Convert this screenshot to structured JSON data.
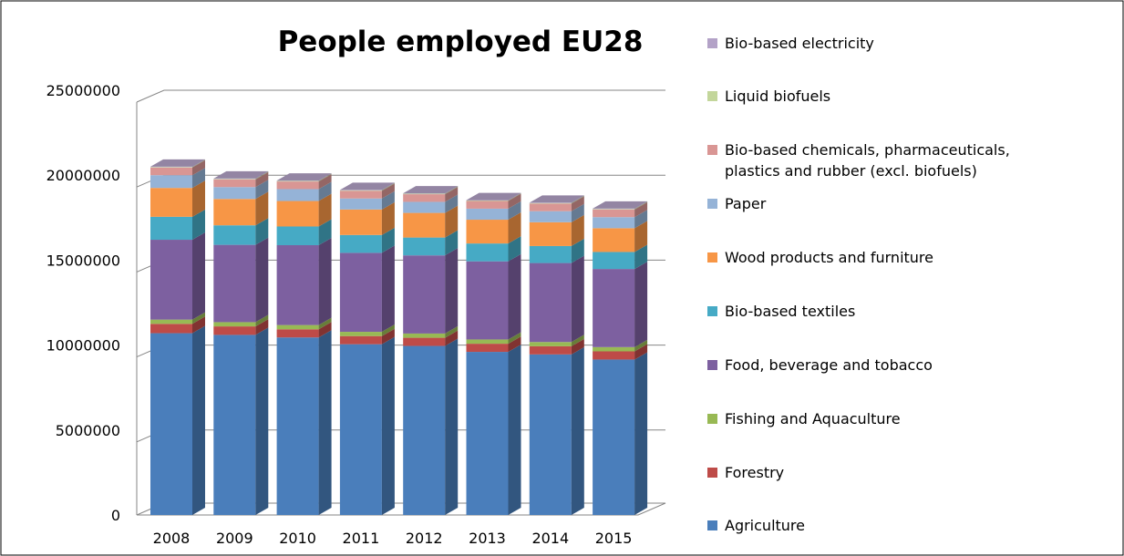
{
  "chart_data": {
    "type": "bar",
    "stacked": true,
    "style": "3d-column",
    "title": "People employed EU28",
    "xlabel": "",
    "ylabel": "",
    "ylim": [
      0,
      25000000
    ],
    "yticks": [
      "0",
      "5000000",
      "10000000",
      "15000000",
      "20000000",
      "25000000"
    ],
    "ytick_values": [
      0,
      5000000,
      10000000,
      15000000,
      20000000,
      25000000
    ],
    "grid": true,
    "legend_position": "right",
    "categories": [
      "2008",
      "2009",
      "2010",
      "2011",
      "2012",
      "2013",
      "2014",
      "2015"
    ],
    "series": [
      {
        "name": "Agriculture",
        "color": "#4A7EBB",
        "values": [
          10700000,
          10600000,
          10450000,
          10050000,
          9950000,
          9600000,
          9450000,
          9150000
        ]
      },
      {
        "name": "Forestry",
        "color": "#BE4B48",
        "values": [
          550000,
          500000,
          480000,
          480000,
          480000,
          480000,
          480000,
          480000
        ]
      },
      {
        "name": "Fishing and Aquaculture",
        "color": "#98B954",
        "values": [
          250000,
          250000,
          250000,
          250000,
          250000,
          250000,
          250000,
          250000
        ]
      },
      {
        "name": "Food, beverage and tobacco",
        "color": "#7D60A0",
        "values": [
          4700000,
          4550000,
          4700000,
          4650000,
          4600000,
          4600000,
          4650000,
          4600000
        ]
      },
      {
        "name": "Bio-based textiles",
        "color": "#46AAC5",
        "values": [
          1350000,
          1150000,
          1100000,
          1050000,
          1050000,
          1050000,
          1000000,
          1000000
        ]
      },
      {
        "name": "Wood products and furniture",
        "color": "#F79646",
        "values": [
          1700000,
          1550000,
          1500000,
          1500000,
          1450000,
          1400000,
          1400000,
          1400000
        ]
      },
      {
        "name": "Paper",
        "color": "#95B3D7",
        "values": [
          750000,
          700000,
          700000,
          650000,
          650000,
          650000,
          650000,
          650000
        ]
      },
      {
        "name": "Bio-based chemicals, pharmaceuticals, plastics and rubber (excl. biofuels)",
        "color": "#D99694",
        "values": [
          450000,
          450000,
          450000,
          450000,
          450000,
          450000,
          450000,
          450000
        ]
      },
      {
        "name": "Liquid biofuels",
        "color": "#C3D69B",
        "values": [
          30000,
          30000,
          30000,
          30000,
          30000,
          30000,
          30000,
          30000
        ]
      },
      {
        "name": "Bio-based electricity",
        "color": "#B3A2C7",
        "values": [
          20000,
          20000,
          20000,
          20000,
          20000,
          20000,
          20000,
          20000
        ]
      }
    ],
    "legend": [
      "Bio-based electricity",
      "Liquid biofuels",
      "Bio-based chemicals, pharmaceuticals,",
      "plastics and rubber (excl. biofuels)",
      "Paper",
      "Wood products and furniture",
      "Bio-based textiles",
      "Food, beverage and tobacco",
      "Fishing and Aquaculture",
      "Forestry",
      "Agriculture"
    ]
  }
}
